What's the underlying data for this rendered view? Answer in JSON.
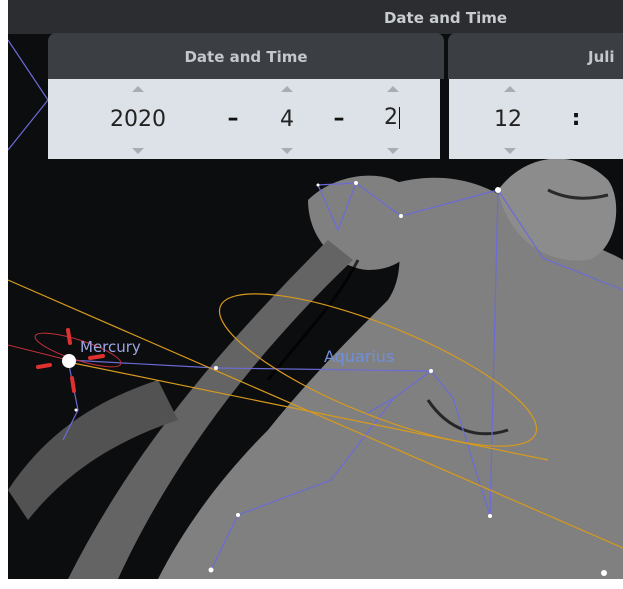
{
  "window": {
    "title": "Date and Time"
  },
  "tabs": [
    "Date and Time",
    "Juli"
  ],
  "date": {
    "year": "2020",
    "month": "4",
    "day": "2",
    "separators": [
      "–",
      "–"
    ]
  },
  "time": {
    "hour": "12",
    "separator": ":"
  },
  "sky": {
    "planet": "Mercury",
    "constellation": "Aquarius"
  }
}
